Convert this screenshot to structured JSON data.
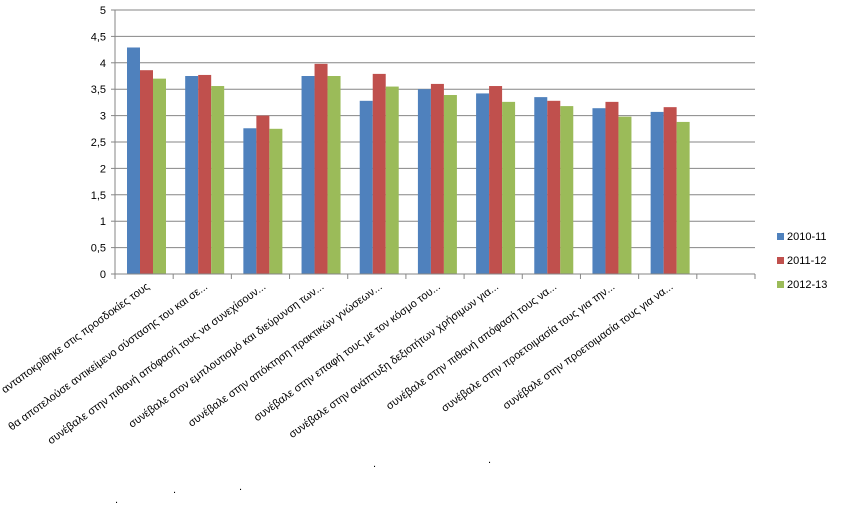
{
  "chart_data": {
    "type": "bar",
    "categories": [
      "ανταποκρίθηκε στις προσδοκίες τους",
      "θα αποτελούσε αντικείμενο σύστασης του και σε...",
      "συνέβαλε στην πιθανή απόφασή τους να συνεχίσουν...",
      "συνέβαλε στον εμπλουτισμό  και  διεύρυνση των...",
      "συνέβαλε στην  απόκτηση  πρακτικών γνώσεων...",
      "συνέβαλε στην  επαφή τους με τον κόσμο του...",
      "συνέβαλε στην ανάπτυξη δεξιοτήτων χρήσιμων για...",
      "συνέβαλε στην πιθανή απόφασή τους να...",
      "συνέβαλε στην προετοιμασία τους  για την...",
      "συνέβαλε στην προετοιμασία τους για να...",
      ""
    ],
    "dot_labels": [
      "",
      "",
      ".",
      ".",
      ".",
      "",
      "",
      ".",
      ".",
      "",
      ""
    ],
    "series": [
      {
        "name": "2010-11",
        "color": "#4f81bd",
        "values": [
          4.29,
          3.75,
          2.76,
          3.75,
          3.28,
          3.5,
          3.42,
          3.35,
          3.14,
          3.07,
          null
        ]
      },
      {
        "name": "2011-12",
        "color": "#c0504d",
        "values": [
          3.86,
          3.77,
          3.0,
          3.98,
          3.79,
          3.6,
          3.56,
          3.28,
          3.26,
          3.16,
          null
        ]
      },
      {
        "name": "2012-13",
        "color": "#9bbb59",
        "values": [
          3.7,
          3.56,
          2.75,
          3.75,
          3.55,
          3.39,
          3.26,
          3.18,
          2.98,
          2.88,
          null
        ]
      }
    ],
    "ylim": [
      0,
      5
    ],
    "yticks": [
      "0",
      "0,5",
      "1",
      "1,5",
      "2",
      "2,5",
      "3",
      "3,5",
      "4",
      "4,5",
      "5"
    ],
    "grid": true,
    "legend_position": "right"
  }
}
